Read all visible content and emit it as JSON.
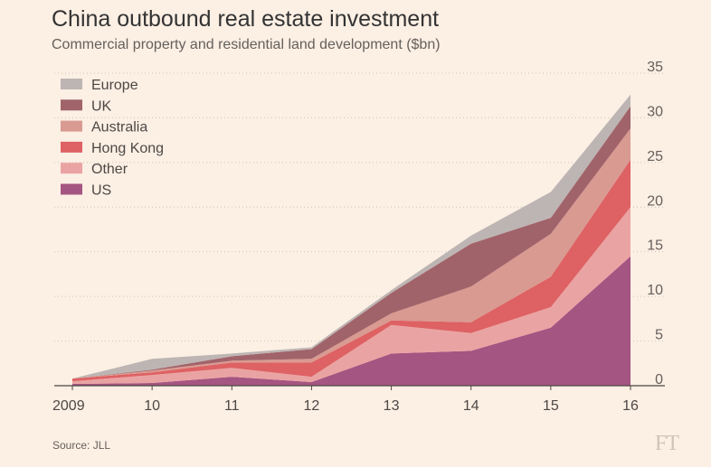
{
  "title": "China outbound real estate investment",
  "subtitle": "Commercial property and residential land development ($bn)",
  "source": "Source: JLL",
  "logo_text": "FT",
  "chart_data": {
    "type": "area",
    "stacked": true,
    "title": "China outbound real estate investment",
    "subtitle": "Commercial property and residential land development ($bn)",
    "x": [
      2009,
      2010,
      2011,
      2012,
      2013,
      2014,
      2015,
      2016
    ],
    "x_tick_labels": [
      "2009",
      "10",
      "11",
      "12",
      "13",
      "14",
      "15",
      "16"
    ],
    "y_ticks": [
      0,
      5,
      10,
      15,
      20,
      25,
      30,
      35
    ],
    "ylim": [
      0,
      35
    ],
    "y_axis_side": "right",
    "grid": "dotted horizontal",
    "legend_position": "top-left",
    "series": [
      {
        "name": "US",
        "color": "#a55581",
        "values": [
          0.2,
          0.3,
          1.0,
          0.4,
          3.6,
          3.9,
          6.5,
          14.5
        ]
      },
      {
        "name": "Other",
        "color": "#eaa3a3",
        "values": [
          0.3,
          0.9,
          1.0,
          0.6,
          3.2,
          2.0,
          2.3,
          5.5
        ]
      },
      {
        "name": "Hong Kong",
        "color": "#de6163",
        "values": [
          0.3,
          0.3,
          0.6,
          1.6,
          0.5,
          1.2,
          3.4,
          5.3
        ]
      },
      {
        "name": "Australia",
        "color": "#d99a91",
        "values": [
          0.0,
          0.2,
          0.2,
          0.4,
          0.8,
          4.0,
          4.8,
          3.5
        ]
      },
      {
        "name": "UK",
        "color": "#a1636a",
        "values": [
          0.0,
          0.1,
          0.5,
          1.1,
          2.3,
          4.8,
          1.8,
          2.5
        ]
      },
      {
        "name": "Europe",
        "color": "#bdb5b3",
        "values": [
          0.0,
          1.2,
          0.3,
          0.2,
          0.3,
          0.9,
          2.9,
          1.3
        ]
      }
    ]
  }
}
